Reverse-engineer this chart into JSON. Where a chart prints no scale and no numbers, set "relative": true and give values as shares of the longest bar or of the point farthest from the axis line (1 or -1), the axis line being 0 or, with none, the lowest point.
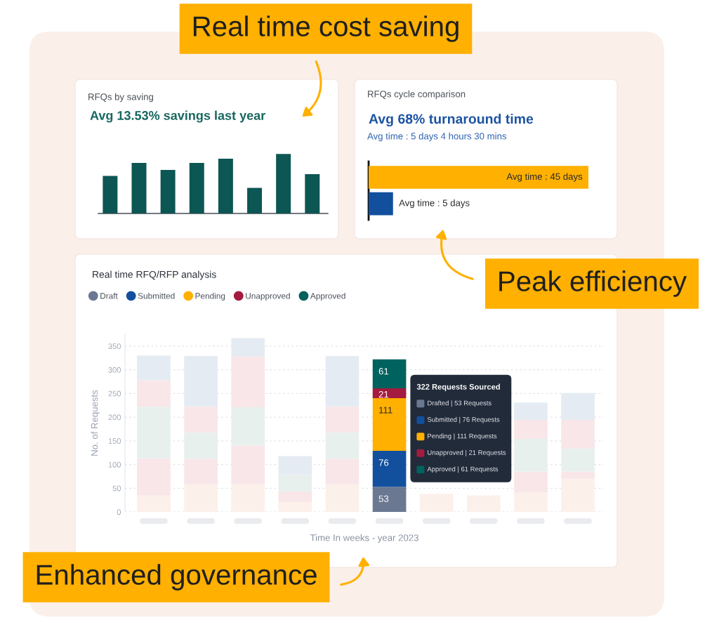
{
  "chart_data": [
    {
      "type": "bar",
      "title": "RFQs by saving",
      "subtitle": "Avg 13.53% savings last year",
      "relative": true,
      "categories": [
        null,
        null,
        null,
        null,
        null,
        null,
        null,
        null
      ],
      "values": [
        0.63,
        0.85,
        0.73,
        0.85,
        0.92,
        0.43,
        1,
        0.66
      ],
      "color": "#0c5654",
      "annotations": [
        "Real time cost saving"
      ]
    },
    {
      "type": "bar",
      "orientation": "horizontal",
      "title": "RFQs cycle comparison",
      "subtitle": "Avg 68% turnaround time",
      "categories": [
        null,
        null
      ],
      "values": [
        45,
        5
      ],
      "colors": [
        "#ffb000",
        "#12509e"
      ],
      "value_labels": [
        "Avg time : 45 days",
        "Avg time : 5 days"
      ],
      "xlim": [
        0,
        45
      ],
      "tick_labels": false,
      "annotations": [
        "Avg time : 5 days 4 hours 30 mins",
        "Peak efficiency"
      ]
    },
    {
      "type": "bar",
      "stacked": true,
      "title": "Real time RFQ/RFP analysis",
      "xlabel": "Time In weeks - year 2023",
      "ylabel": "No. of Requests",
      "categories": [
        null,
        null,
        null,
        null,
        null,
        null,
        null,
        null,
        null,
        null
      ],
      "ylim": [
        0,
        375
      ],
      "yticks": [
        0,
        50,
        100,
        150,
        200,
        250,
        300,
        350
      ],
      "grid": "y",
      "legend": "top left",
      "series": [
        {
          "name": "Draft",
          "color": "#6b7891",
          "colors": [
            "#fcf0ea",
            "#fcf0ea",
            "#fcf0ea",
            "#fcf0ea",
            "#fcf0ea",
            "#6b7891",
            "#fcf0ea",
            "#fcf0ea",
            "#fcf0ea",
            "#fcf0ea"
          ],
          "values": [
            35,
            58,
            58,
            21,
            58,
            53,
            38,
            35,
            41,
            70
          ],
          "value_labels": [
            null,
            null,
            null,
            null,
            null,
            "53",
            null,
            null,
            null,
            null
          ]
        },
        {
          "name": "Submitted",
          "color": "#12509e",
          "colors": [
            "#f8e6e9",
            "#f8e6e9",
            "#f8e6e9",
            "#f8e6e9",
            "#f8e6e9",
            "#12509e",
            "#f8e6e9",
            "#f8e6e9",
            "#f8e6e9",
            "#f8e6e9"
          ],
          "values": [
            78,
            54,
            82,
            22,
            54,
            76,
            null,
            null,
            44,
            15
          ],
          "value_labels": [
            null,
            null,
            null,
            null,
            null,
            "76",
            null,
            null,
            null,
            null
          ]
        },
        {
          "name": "Pending",
          "color": "#ffb000",
          "colors": [
            "#e8f0ee",
            "#e8f0ee",
            "#e8f0ee",
            "#e8f0ee",
            "#e8f0ee",
            "#ffb000",
            "#e8f0ee",
            "#e8f0ee",
            "#e8f0ee",
            "#e8f0ee"
          ],
          "values": [
            109,
            56,
            81,
            36,
            56,
            111,
            null,
            null,
            69,
            49
          ],
          "value_labels": [
            null,
            null,
            null,
            null,
            null,
            "111",
            null,
            null,
            null,
            null
          ]
        },
        {
          "name": "Unapproved",
          "color": "#a31b3e",
          "colors": [
            "#f8e6e9",
            "#f8e6e9",
            "#f8e6e9",
            "#f8e6e9",
            "#f8e6e9",
            "#a31b3e",
            "#f8e6e9",
            "#f8e6e9",
            "#f8e6e9",
            "#f8e6e9"
          ],
          "values": [
            56,
            55,
            107,
            0,
            55,
            21,
            null,
            null,
            40,
            60
          ],
          "value_labels": [
            null,
            null,
            null,
            null,
            null,
            "21",
            null,
            null,
            null,
            null
          ]
        },
        {
          "name": "Approved",
          "color": "#00625e",
          "colors": [
            "#e4ebf3",
            "#e4ebf3",
            "#e4ebf3",
            "#e4ebf3",
            "#e4ebf3",
            "#00625e",
            "#e4ebf3",
            "#e4ebf3",
            "#e4ebf3",
            "#e4ebf3"
          ],
          "values": [
            52,
            106,
            39,
            39,
            106,
            61,
            null,
            null,
            37,
            57
          ],
          "value_labels": [
            null,
            null,
            null,
            null,
            null,
            "61",
            null,
            null,
            null,
            null
          ]
        }
      ],
      "annotations": [
        "322 Requests Sourced",
        "Drafted | 53 Requests",
        "Submitted | 76 Requests",
        "Pending | 111 Requests",
        "Unapproved | 21 Requests",
        "Approved | 61 Requests",
        "Enhanced governance"
      ]
    }
  ]
}
